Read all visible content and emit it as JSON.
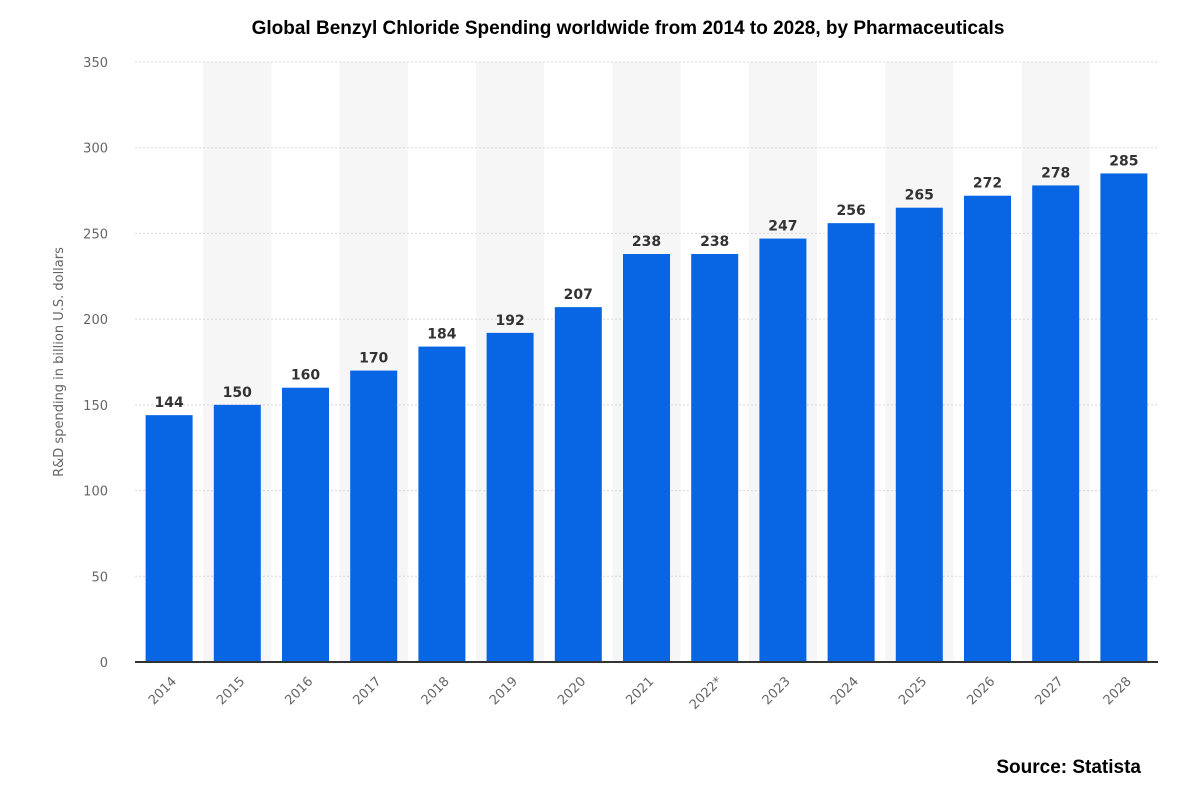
{
  "chart_data": {
    "type": "bar",
    "title": "Global Benzyl Chloride Spending worldwide from 2014 to 2028, by Pharmaceuticals",
    "xlabel": "",
    "ylabel": "R&D spending in billion U.S. dollars",
    "categories": [
      "2014",
      "2015",
      "2016",
      "2017",
      "2018",
      "2019",
      "2020",
      "2021",
      "2022*",
      "2023",
      "2024",
      "2025",
      "2026",
      "2027",
      "2028"
    ],
    "values": [
      144,
      150,
      160,
      170,
      184,
      192,
      207,
      238,
      238,
      247,
      256,
      265,
      272,
      278,
      285
    ],
    "ylim": [
      0,
      350
    ],
    "yticks": [
      0,
      50,
      100,
      150,
      200,
      250,
      300,
      350
    ],
    "grid": true,
    "data_labels": true,
    "bar_color": "#0866e5",
    "alternating_band_color": "#f6f6f6",
    "source": "Source: Statista"
  }
}
